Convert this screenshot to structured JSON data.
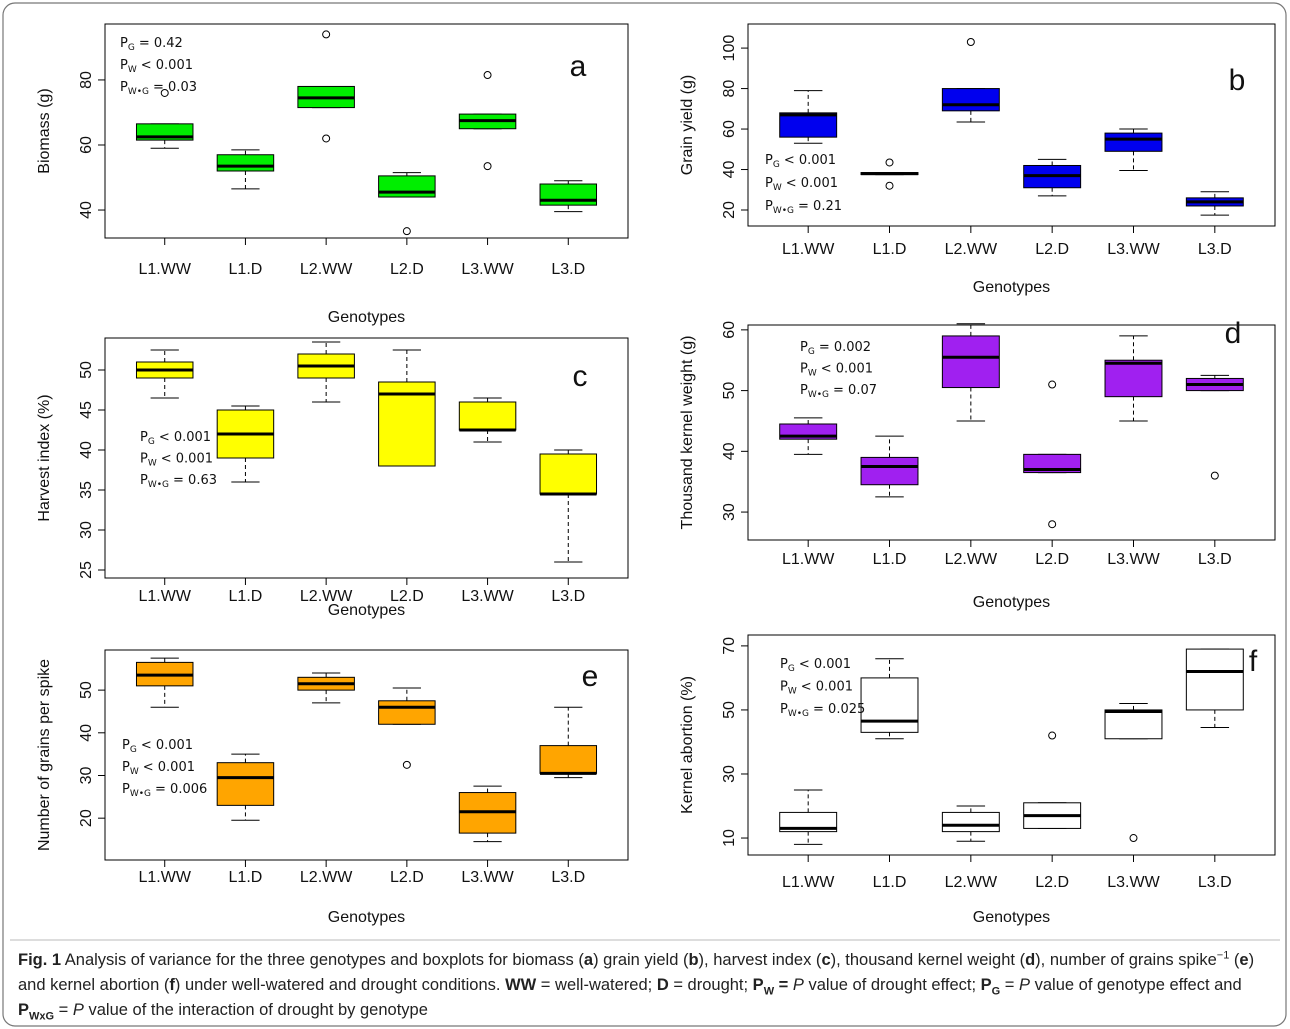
{
  "chart_data": [
    {
      "type": "boxplot",
      "panel_label": "a",
      "y_label": "Biomass (g)",
      "x_label": "Genotypes",
      "categories": [
        "L1.WW",
        "L1.D",
        "L2.WW",
        "L2.D",
        "L3.WW",
        "L3.D"
      ],
      "color": "#00ee00",
      "boxes": [
        {
          "whislo": 59,
          "q1": 61.5,
          "median": 62.5,
          "q3": 66.5,
          "whishi": 66.5,
          "outliers": [
            76
          ]
        },
        {
          "whislo": 46.5,
          "q1": 52,
          "median": 53.5,
          "q3": 57,
          "whishi": 58.5,
          "outliers": []
        },
        {
          "whislo": 71.5,
          "q1": 71.5,
          "median": 74.5,
          "q3": 78,
          "whishi": 78,
          "outliers": [
            94,
            62
          ]
        },
        {
          "whislo": 44,
          "q1": 44,
          "median": 45.5,
          "q3": 50.5,
          "whishi": 51.5,
          "outliers": [
            33.5
          ]
        },
        {
          "whislo": 65,
          "q1": 65,
          "median": 67.5,
          "q3": 69.5,
          "whishi": 69.5,
          "outliers": [
            81.5,
            53.5
          ]
        },
        {
          "whislo": 39.5,
          "q1": 41.5,
          "median": 43,
          "q3": 48,
          "whishi": 49,
          "outliers": []
        }
      ],
      "ylim": [
        31.4,
        97.2
      ],
      "yticks": [
        40,
        60,
        80
      ],
      "annotations": [
        {
          "symbol": "P",
          "sub": "G",
          "text": "= 0.42"
        },
        {
          "symbol": "P",
          "sub": "W",
          "text": "< 0.001"
        },
        {
          "symbol": "P",
          "sub": "W•G",
          "text": "= 0.03"
        }
      ]
    },
    {
      "type": "boxplot",
      "panel_label": "b",
      "y_label": "Grain yield (g)",
      "x_label": "Genotypes",
      "categories": [
        "L1.WW",
        "L1.D",
        "L2.WW",
        "L2.D",
        "L3.WW",
        "L3.D"
      ],
      "color": "#0000ee",
      "boxes": [
        {
          "whislo": 53,
          "q1": 56,
          "median": 67,
          "q3": 68,
          "whishi": 79,
          "outliers": []
        },
        {
          "whislo": 37.5,
          "q1": 37.5,
          "median": 38,
          "q3": 38.5,
          "whishi": 38.5,
          "outliers": [
            43.5,
            32
          ]
        },
        {
          "whislo": 63.5,
          "q1": 69,
          "median": 72,
          "q3": 80,
          "whishi": 80,
          "outliers": [
            103
          ]
        },
        {
          "whislo": 27,
          "q1": 31,
          "median": 37,
          "q3": 42,
          "whishi": 45,
          "outliers": []
        },
        {
          "whislo": 39.5,
          "q1": 49,
          "median": 55,
          "q3": 58,
          "whishi": 60,
          "outliers": []
        },
        {
          "whislo": 17.5,
          "q1": 22,
          "median": 24,
          "q3": 26,
          "whishi": 29,
          "outliers": []
        }
      ],
      "ylim": [
        12.1,
        111.9
      ],
      "yticks": [
        20,
        40,
        60,
        80,
        100
      ],
      "annotations": [
        {
          "symbol": "P",
          "sub": "G",
          "text": "< 0.001"
        },
        {
          "symbol": "P",
          "sub": "W",
          "text": "< 0.001"
        },
        {
          "symbol": "P",
          "sub": "W•G",
          "text": "= 0.21"
        }
      ]
    },
    {
      "type": "boxplot",
      "panel_label": "c",
      "y_label": "Harvest index (%)",
      "x_label": "Genotypes",
      "categories": [
        "L1.WW",
        "L1.D",
        "L2.WW",
        "L2.D",
        "L3.WW",
        "L3.D"
      ],
      "color": "#ffff00",
      "boxes": [
        {
          "whislo": 46.5,
          "q1": 49,
          "median": 50,
          "q3": 51,
          "whishi": 52.5,
          "outliers": []
        },
        {
          "whislo": 36,
          "q1": 39,
          "median": 42,
          "q3": 45,
          "whishi": 45.5,
          "outliers": []
        },
        {
          "whislo": 46,
          "q1": 49,
          "median": 50.5,
          "q3": 52,
          "whishi": 53.5,
          "outliers": []
        },
        {
          "whislo": 38,
          "q1": 38,
          "median": 47,
          "q3": 48.5,
          "whishi": 52.5,
          "outliers": []
        },
        {
          "whislo": 41,
          "q1": 42.5,
          "median": 42.5,
          "q3": 46,
          "whishi": 46.5,
          "outliers": []
        },
        {
          "whislo": 26,
          "q1": 34.5,
          "median": 34.5,
          "q3": 39.5,
          "whishi": 40,
          "outliers": []
        }
      ],
      "ylim": [
        24,
        54
      ],
      "yticks": [
        25,
        30,
        35,
        40,
        45,
        50
      ],
      "annotations": [
        {
          "symbol": "P",
          "sub": "G",
          "text": "< 0.001"
        },
        {
          "symbol": "P",
          "sub": "W",
          "text": "< 0.001"
        },
        {
          "symbol": "P",
          "sub": "W•G",
          "text": "= 0.63"
        }
      ]
    },
    {
      "type": "boxplot",
      "panel_label": "d",
      "y_label": "Thousand kernel weight (g)",
      "x_label": "Genotypes",
      "categories": [
        "L1.WW",
        "L1.D",
        "L2.WW",
        "L2.D",
        "L3.WW",
        "L3.D"
      ],
      "color": "#a020f0",
      "boxes": [
        {
          "whislo": 39.5,
          "q1": 42,
          "median": 42.5,
          "q3": 44.5,
          "whishi": 45.5,
          "outliers": []
        },
        {
          "whislo": 32.5,
          "q1": 34.5,
          "median": 37.5,
          "q3": 39,
          "whishi": 42.5,
          "outliers": []
        },
        {
          "whislo": 45,
          "q1": 50.5,
          "median": 55.5,
          "q3": 59,
          "whishi": 61,
          "outliers": []
        },
        {
          "whislo": 36.5,
          "q1": 36.5,
          "median": 37,
          "q3": 39.5,
          "whishi": 39.5,
          "outliers": [
            51,
            28
          ]
        },
        {
          "whislo": 45,
          "q1": 49,
          "median": 54.5,
          "q3": 55,
          "whishi": 59,
          "outliers": []
        },
        {
          "whislo": 50,
          "q1": 50,
          "median": 51,
          "q3": 52,
          "whishi": 52.5,
          "outliers": [
            36
          ]
        }
      ],
      "ylim": [
        25.4,
        60.8
      ],
      "yticks": [
        30,
        40,
        50,
        60
      ],
      "annotations": [
        {
          "symbol": "P",
          "sub": "G",
          "text": "= 0.002"
        },
        {
          "symbol": "P",
          "sub": "W",
          "text": "< 0.001"
        },
        {
          "symbol": "P",
          "sub": "W•G",
          "text": "= 0.07"
        }
      ]
    },
    {
      "type": "boxplot",
      "panel_label": "e",
      "y_label": "Number of grains per spike",
      "x_label": "Genotypes",
      "categories": [
        "L1.WW",
        "L1.D",
        "L2.WW",
        "L2.D",
        "L3.WW",
        "L3.D"
      ],
      "color": "#ffa500",
      "boxes": [
        {
          "whislo": 46,
          "q1": 51,
          "median": 53.5,
          "q3": 56.5,
          "whishi": 57.5,
          "outliers": []
        },
        {
          "whislo": 19.5,
          "q1": 23,
          "median": 29.5,
          "q3": 33,
          "whishi": 35,
          "outliers": []
        },
        {
          "whislo": 47,
          "q1": 50,
          "median": 51.5,
          "q3": 53,
          "whishi": 54,
          "outliers": []
        },
        {
          "whislo": 42,
          "q1": 42,
          "median": 46,
          "q3": 47.5,
          "whishi": 50.5,
          "outliers": [
            32.5
          ]
        },
        {
          "whislo": 14.5,
          "q1": 16.5,
          "median": 21.5,
          "q3": 26,
          "whishi": 27.5,
          "outliers": []
        },
        {
          "whislo": 29.5,
          "q1": 30.5,
          "median": 30.5,
          "q3": 37,
          "whishi": 46,
          "outliers": []
        }
      ],
      "ylim": [
        10.2,
        59.4
      ],
      "yticks": [
        20,
        30,
        40,
        50
      ],
      "annotations": [
        {
          "symbol": "P",
          "sub": "G",
          "text": "< 0.001"
        },
        {
          "symbol": "P",
          "sub": "W",
          "text": "< 0.001"
        },
        {
          "symbol": "P",
          "sub": "W•G",
          "text": "= 0.006"
        }
      ]
    },
    {
      "type": "boxplot",
      "panel_label": "f",
      "y_label": "Kernel abortion (%)",
      "x_label": "Genotypes",
      "categories": [
        "L1.WW",
        "L1.D",
        "L2.WW",
        "L2.D",
        "L3.WW",
        "L3.D"
      ],
      "color": "#ffffff",
      "boxes": [
        {
          "whislo": 8,
          "q1": 12,
          "median": 13,
          "q3": 18,
          "whishi": 25,
          "outliers": []
        },
        {
          "whislo": 41,
          "q1": 43,
          "median": 46.5,
          "q3": 60,
          "whishi": 66,
          "outliers": []
        },
        {
          "whislo": 9,
          "q1": 12,
          "median": 14,
          "q3": 18,
          "whishi": 20,
          "outliers": []
        },
        {
          "whislo": 13,
          "q1": 13,
          "median": 17,
          "q3": 21,
          "whishi": 21,
          "outliers": [
            42
          ]
        },
        {
          "whislo": 41,
          "q1": 41,
          "median": 49.5,
          "q3": 50,
          "whishi": 52,
          "outliers": [
            10
          ]
        },
        {
          "whislo": 44.5,
          "q1": 50,
          "median": 62,
          "q3": 69,
          "whishi": 69,
          "outliers": []
        }
      ],
      "ylim": [
        4.7,
        73.4
      ],
      "yticks": [
        10,
        30,
        50,
        70
      ],
      "annotations": [
        {
          "symbol": "P",
          "sub": "G",
          "text": "< 0.001"
        },
        {
          "symbol": "P",
          "sub": "W",
          "text": "< 0.001"
        },
        {
          "symbol": "P",
          "sub": "W•G",
          "text": "= 0.025"
        }
      ]
    }
  ],
  "caption": [
    {
      "text": "Fig. 1",
      "bold": true
    },
    {
      "text": " Analysis of variance for the three genotypes and boxplots for biomass ("
    },
    {
      "text": "a",
      "bold": true
    },
    {
      "text": ") grain yield ("
    },
    {
      "text": "b",
      "bold": true
    },
    {
      "text": "), harvest index ("
    },
    {
      "text": "c",
      "bold": true
    },
    {
      "text": "), thousand kernel weight ("
    },
    {
      "text": "d",
      "bold": true
    },
    {
      "text": "), number of grains spike"
    },
    {
      "text": "−1",
      "sup": true
    },
    {
      "text": " ("
    },
    {
      "text": "e",
      "bold": true
    },
    {
      "text": ") and kernel abortion ("
    },
    {
      "text": "f",
      "bold": true
    },
    {
      "text": ") under well-watered and drought conditions. "
    },
    {
      "text": "WW",
      "bold": true
    },
    {
      "text": " = well-watered; "
    },
    {
      "text": "D",
      "bold": true
    },
    {
      "text": " = drought; "
    },
    {
      "text": "P",
      "bold": true
    },
    {
      "text": "W",
      "bold": true,
      "sub": true
    },
    {
      "text": " = ",
      "bold": true
    },
    {
      "text": "P",
      "italic": true
    },
    {
      "text": " value of drought effect; "
    },
    {
      "text": "P",
      "bold": true
    },
    {
      "text": "G",
      "bold": true,
      "sub": true
    },
    {
      "text": " = "
    },
    {
      "text": "P",
      "italic": true
    },
    {
      "text": " value of genotype effect and "
    },
    {
      "text": "P",
      "bold": true
    },
    {
      "text": "WxG",
      "bold": true,
      "sub": true
    },
    {
      "text": " = "
    },
    {
      "text": "P",
      "italic": true
    },
    {
      "text": " value of the interaction of drought by genotype"
    }
  ]
}
